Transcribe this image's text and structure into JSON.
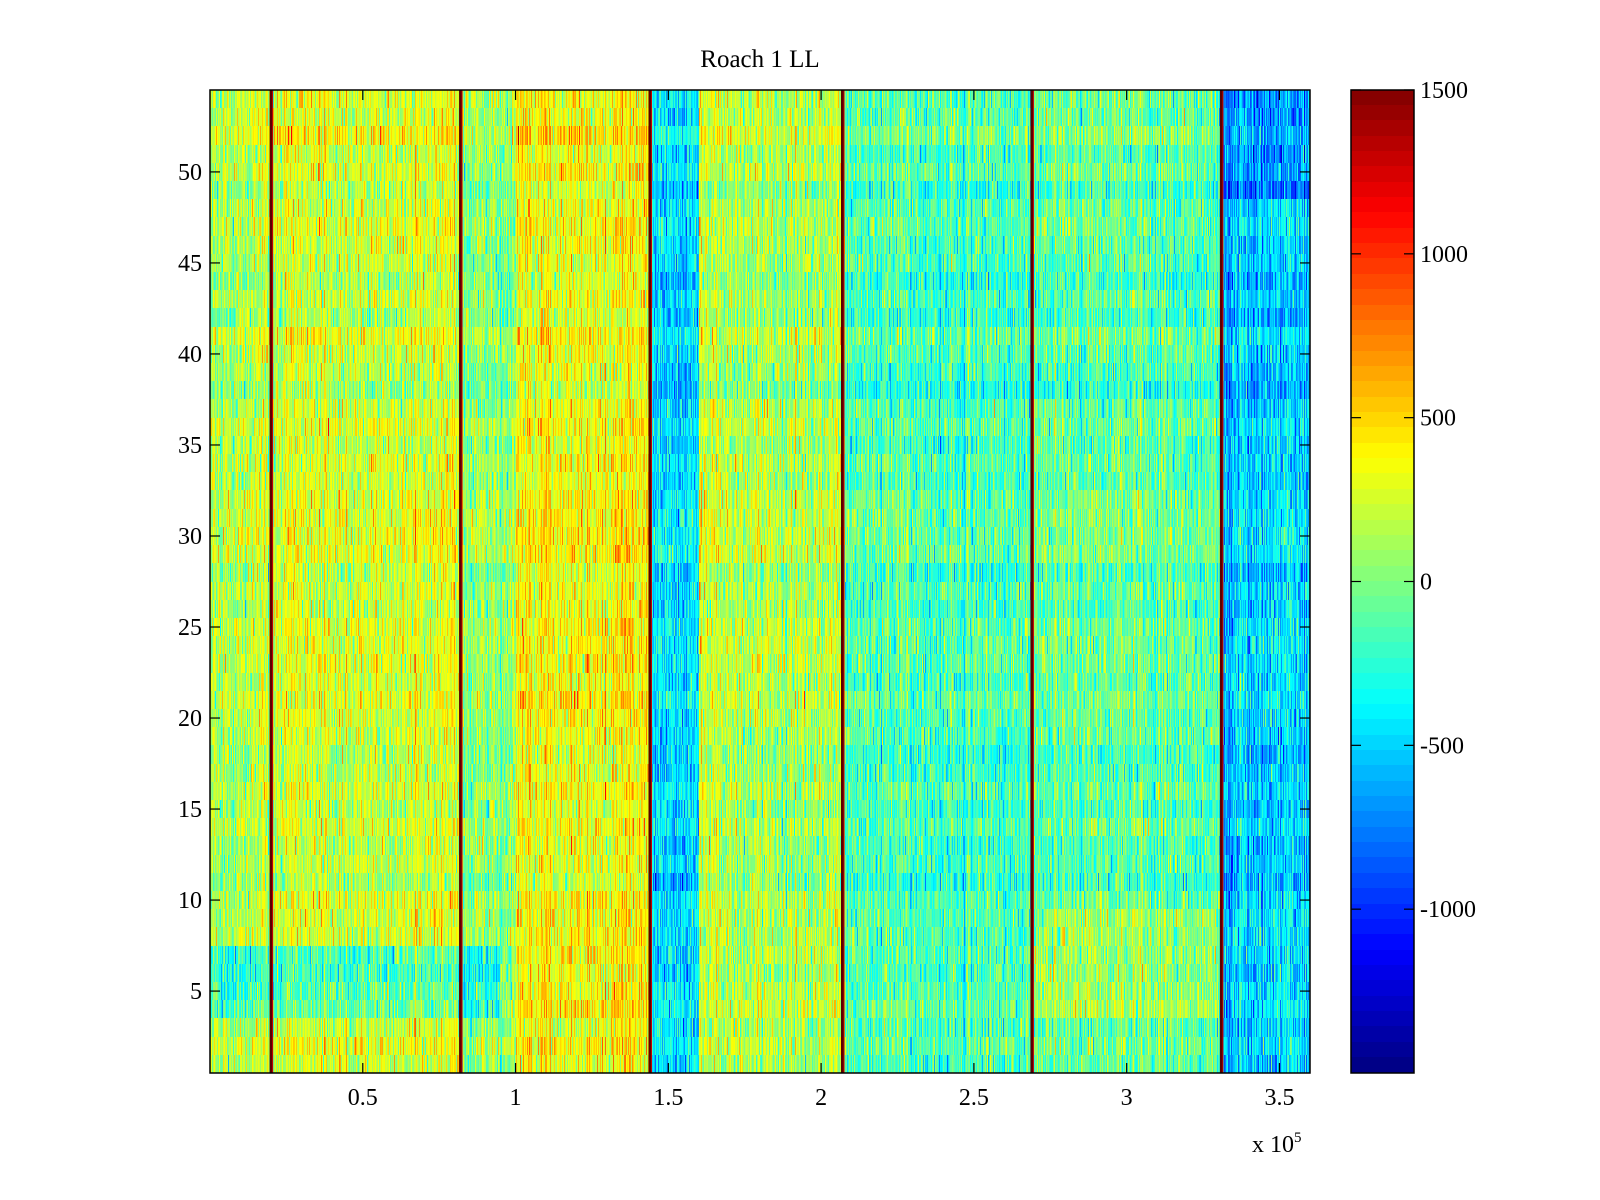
{
  "chart_data": {
    "type": "heatmap",
    "title": "Roach 1 LL",
    "xlabel": "",
    "ylabel": "",
    "x_multiplier_label": "x 10",
    "x_multiplier_exponent": "5",
    "x_range": [
      0,
      3.6
    ],
    "y_range": [
      0.5,
      54.5
    ],
    "rows": 54,
    "x_ticks": [
      0.5,
      1,
      1.5,
      2,
      2.5,
      3,
      3.5
    ],
    "x_tick_labels": [
      "0.5",
      "1",
      "1.5",
      "2",
      "2.5",
      "3",
      "3.5"
    ],
    "y_ticks": [
      5,
      10,
      15,
      20,
      25,
      30,
      35,
      40,
      45,
      50
    ],
    "y_tick_labels": [
      "5",
      "10",
      "15",
      "20",
      "25",
      "30",
      "35",
      "40",
      "45",
      "50"
    ],
    "colorbar": {
      "colormap": "jet",
      "range": [
        -1500,
        1500
      ],
      "ticks": [
        -1000,
        -500,
        0,
        500,
        1000,
        1500
      ],
      "tick_labels": [
        "-1000",
        "-500",
        "0",
        "500",
        "1000",
        "1500"
      ]
    },
    "separator_lines_x": [
      0.2,
      0.82,
      1.44,
      2.07,
      2.69,
      3.31
    ],
    "segment_mean_levels": [
      {
        "x_start": 0.0,
        "x_end": 0.2,
        "mean": 150
      },
      {
        "x_start": 0.2,
        "x_end": 0.82,
        "mean": 250
      },
      {
        "x_start": 0.82,
        "x_end": 1.0,
        "mean": 0
      },
      {
        "x_start": 1.0,
        "x_end": 1.44,
        "mean": 380
      },
      {
        "x_start": 1.44,
        "x_end": 1.6,
        "mean": -480
      },
      {
        "x_start": 1.6,
        "x_end": 2.07,
        "mean": 150
      },
      {
        "x_start": 2.07,
        "x_end": 2.69,
        "mean": -150
      },
      {
        "x_start": 2.69,
        "x_end": 3.31,
        "mean": -100
      },
      {
        "x_start": 3.31,
        "x_end": 3.6,
        "mean": -500
      }
    ]
  }
}
